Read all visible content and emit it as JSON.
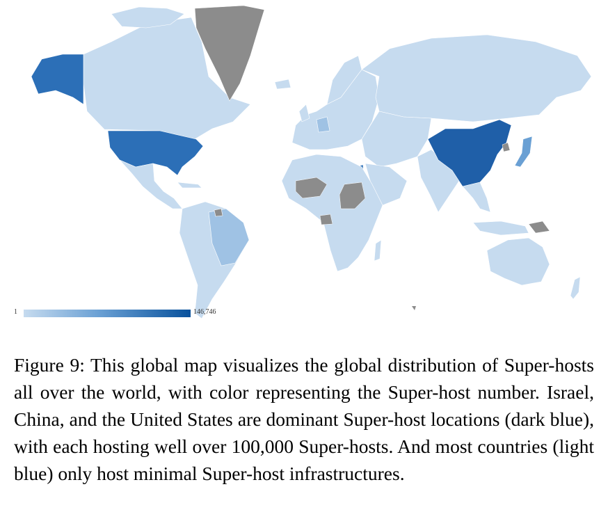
{
  "map": {
    "legend": {
      "min_label": "1",
      "max_label": "146,746"
    },
    "color_scale": {
      "low": "#c6dbef",
      "mid": "#6aa0d4",
      "high": "#08519c",
      "no_data": "#8c8c8c"
    },
    "dominant_regions": [
      "Israel",
      "China",
      "United States"
    ]
  },
  "caption": {
    "text": "Figure 9: This global map visualizes the global distribution of Super-hosts all over the world, with color representing the Super-host number. Israel, China, and the United States are dominant Super-host locations (dark blue), with each hosting well over 100,000 Super-hosts. And most countries (light blue) only host minimal Super-host infrastructures."
  }
}
